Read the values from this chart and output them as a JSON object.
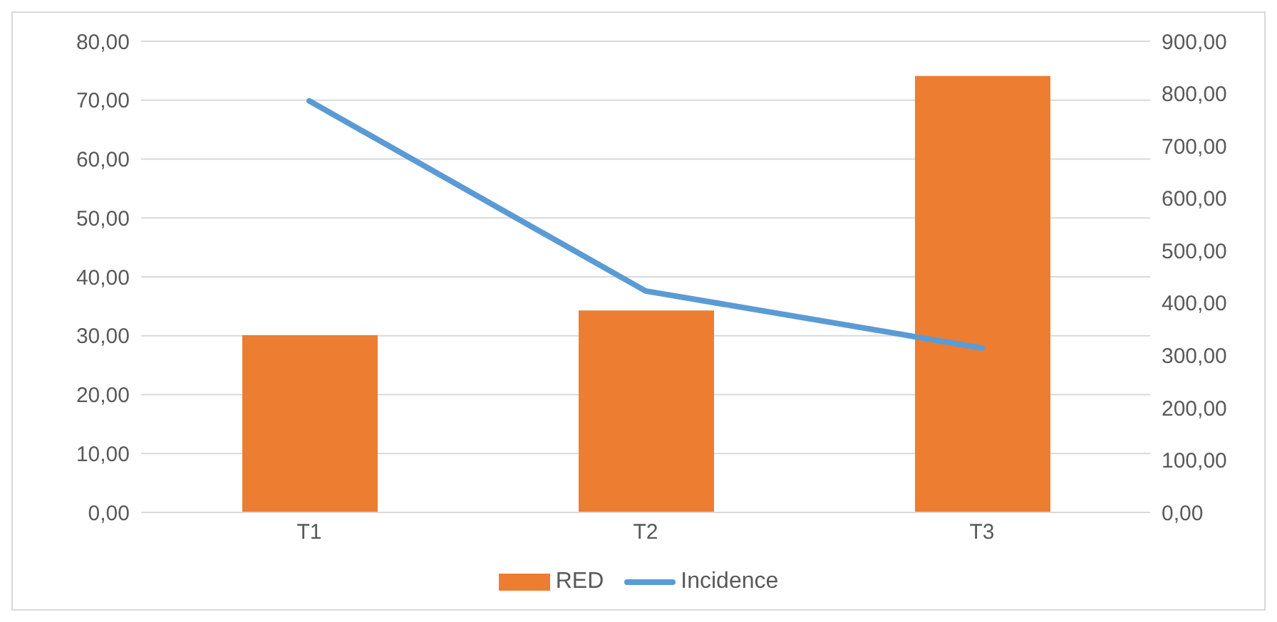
{
  "chart_data": {
    "type": "bar",
    "categories": [
      "T1",
      "T2",
      "T3"
    ],
    "series": [
      {
        "name": "RED",
        "color": "#ed7d31",
        "values": [
          30.1,
          34.3,
          74.1
        ]
      },
      {
        "name": "Incidence",
        "type": "line",
        "axis": "y2",
        "color": "#5b9bd5",
        "values": [
          786,
          423,
          314
        ]
      }
    ],
    "ylim": [
      0,
      80
    ],
    "yticks": [
      {
        "value": 0,
        "label": "0,00"
      },
      {
        "value": 10,
        "label": "10,00"
      },
      {
        "value": 20,
        "label": "20,00"
      },
      {
        "value": 30,
        "label": "30,00"
      },
      {
        "value": 40,
        "label": "40,00"
      },
      {
        "value": 50,
        "label": "50,00"
      },
      {
        "value": 60,
        "label": "60,00"
      },
      {
        "value": 70,
        "label": "70,00"
      },
      {
        "value": 80,
        "label": "80,00"
      }
    ],
    "y2lim": [
      0,
      900
    ],
    "y2ticks": [
      {
        "value": 0,
        "label": "0,00"
      },
      {
        "value": 100,
        "label": "100,00"
      },
      {
        "value": 200,
        "label": "200,00"
      },
      {
        "value": 300,
        "label": "300,00"
      },
      {
        "value": 400,
        "label": "400,00"
      },
      {
        "value": 500,
        "label": "500,00"
      },
      {
        "value": 600,
        "label": "600,00"
      },
      {
        "value": 700,
        "label": "700,00"
      },
      {
        "value": 800,
        "label": "800,00"
      },
      {
        "value": 900,
        "label": "900,00"
      }
    ],
    "grid": "y",
    "legend": "bottom",
    "marker": "none",
    "line_style": "solid"
  }
}
